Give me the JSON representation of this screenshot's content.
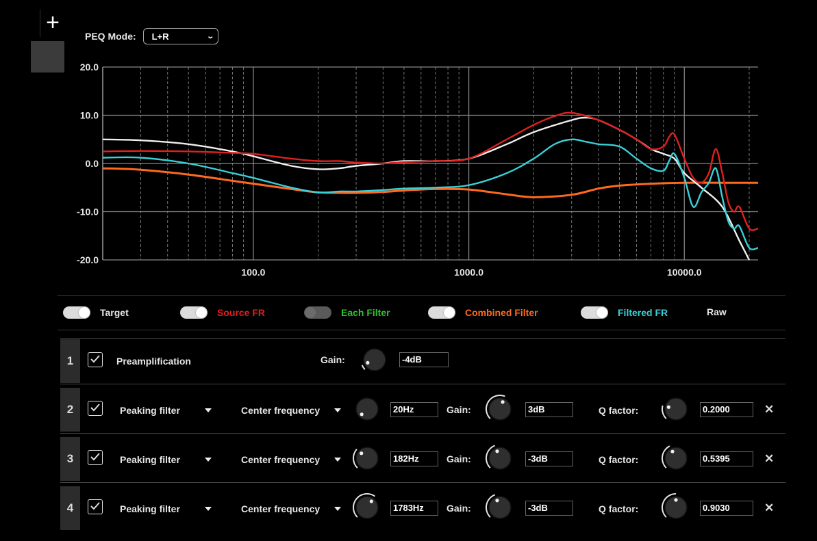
{
  "add_button_icon": "plus-icon",
  "peq_mode": {
    "label": "PEQ Mode:",
    "value": "L+R"
  },
  "chart_data": {
    "type": "line",
    "xscale": "log",
    "xlim": [
      20,
      22000
    ],
    "ylim": [
      -20,
      20
    ],
    "y_ticks": [
      "20.0",
      "10.0",
      "0.0",
      "-10.0",
      "-20.0"
    ],
    "x_ticks": [
      "100.0",
      "1000.0",
      "10000.0"
    ],
    "x_tick_values": [
      100,
      1000,
      10000
    ],
    "grid": true,
    "series": [
      {
        "color": "#f0f0f0",
        "x": [
          20,
          30,
          50,
          80,
          100,
          150,
          200,
          250,
          300,
          400,
          500,
          700,
          1000,
          1500,
          2000,
          3000,
          3500,
          4000,
          5000,
          6000,
          7000,
          8000,
          9000,
          10000,
          12000,
          15000,
          18000,
          20000
        ],
        "y": [
          5,
          4.8,
          4,
          2.5,
          1.5,
          -0.5,
          -1.2,
          -1,
          -0.5,
          0,
          0.5,
          0.5,
          1,
          4,
          6.5,
          9,
          9.5,
          9,
          7,
          5,
          3,
          2,
          1,
          -2,
          -5,
          -9,
          -16,
          -20
        ]
      },
      {
        "color": "#e02020",
        "x": [
          20,
          30,
          50,
          80,
          100,
          150,
          200,
          250,
          300,
          400,
          500,
          700,
          1000,
          1500,
          2000,
          2500,
          3000,
          4000,
          5000,
          6000,
          7000,
          8000,
          8500,
          9000,
          10000,
          11000,
          12000,
          13000,
          14000,
          15000,
          16000,
          17000,
          18000,
          20000,
          22000
        ],
        "y": [
          2.5,
          2.6,
          2.5,
          2.2,
          2,
          1,
          0.5,
          0.5,
          0.2,
          0,
          0.3,
          0.5,
          1,
          5,
          8,
          9.8,
          10.5,
          9,
          7,
          5,
          3,
          3.5,
          5.5,
          6,
          1,
          -3,
          -4,
          -2,
          3,
          -2,
          -8,
          -10,
          -9,
          -13.5,
          -13.5
        ]
      },
      {
        "color": "#3ad0d8",
        "x": [
          20,
          30,
          50,
          80,
          100,
          150,
          200,
          250,
          300,
          400,
          500,
          700,
          1000,
          1500,
          2000,
          2500,
          3000,
          3500,
          4000,
          5000,
          6000,
          7000,
          8000,
          8500,
          9000,
          10000,
          11000,
          12000,
          13000,
          14000,
          15000,
          16000,
          17000,
          18000,
          20000,
          22000
        ],
        "y": [
          1.2,
          1.2,
          0,
          -2,
          -3,
          -5,
          -6,
          -5.8,
          -5.8,
          -5.5,
          -5.2,
          -5,
          -4.5,
          -2,
          1,
          4,
          5,
          4.5,
          4,
          3.5,
          1,
          -1,
          -1.5,
          0.5,
          2,
          -3,
          -9,
          -6,
          -4,
          -1,
          -7,
          -12,
          -13.5,
          -13,
          -17.5,
          -17.5
        ]
      },
      {
        "color": "#ff6a20",
        "x": [
          20,
          30,
          50,
          80,
          100,
          150,
          200,
          250,
          300,
          400,
          500,
          700,
          1000,
          1500,
          2000,
          3000,
          4000,
          5000,
          7000,
          10000,
          15000,
          22000
        ],
        "y": [
          -1,
          -1.3,
          -2.3,
          -3.6,
          -4.2,
          -5.3,
          -6,
          -6.1,
          -6.1,
          -5.9,
          -5.6,
          -5.3,
          -5.4,
          -6.4,
          -7,
          -6.5,
          -5.2,
          -4.6,
          -4.2,
          -4,
          -4,
          -4
        ]
      }
    ]
  },
  "toggles": [
    {
      "label": "Target",
      "color": "#e6e6e6",
      "on": true
    },
    {
      "label": "Source FR",
      "color": "#e02020",
      "on": true
    },
    {
      "label": "Each Filter",
      "color": "#2ec42e",
      "on": false
    },
    {
      "label": "Combined Filter",
      "color": "#ff6a20",
      "on": true
    },
    {
      "label": "Filtered FR",
      "color": "#3ad0d8",
      "on": true
    },
    {
      "label": "Raw",
      "color": "#e6e6e6",
      "on": null
    }
  ],
  "preamp": {
    "num": "1",
    "label": "Preamplification",
    "gain_label": "Gain:",
    "gain_value": "-4dB",
    "gain_level": 0.08
  },
  "filters": [
    {
      "num": "2",
      "type": "Peaking filter",
      "param": "Center frequency",
      "freq": "20Hz",
      "freq_level": 0.0,
      "gain_label": "Gain:",
      "gain": "3dB",
      "gain_level": 0.58,
      "q_label": "Q factor:",
      "q": "0.2000",
      "q_level": 0.22
    },
    {
      "num": "3",
      "type": "Peaking filter",
      "param": "Center frequency",
      "freq": "182Hz",
      "freq_level": 0.32,
      "gain_label": "Gain:",
      "gain": "-3dB",
      "gain_level": 0.42,
      "q_label": "Q factor:",
      "q": "0.5395",
      "q_level": 0.4
    },
    {
      "num": "4",
      "type": "Peaking filter",
      "param": "Center frequency",
      "freq": "1783Hz",
      "freq_level": 0.63,
      "gain_label": "Gain:",
      "gain": "-3dB",
      "gain_level": 0.42,
      "q_label": "Q factor:",
      "q": "0.9030",
      "q_level": 0.5
    }
  ]
}
